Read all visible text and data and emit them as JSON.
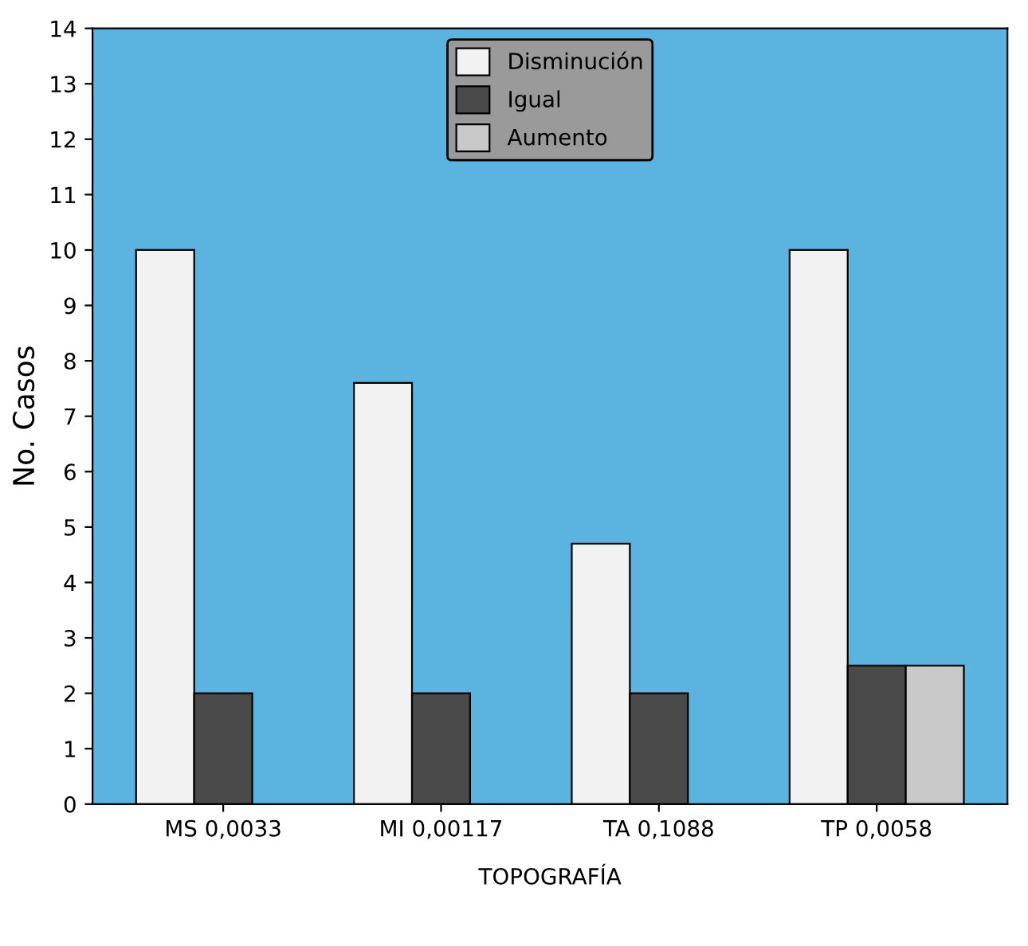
{
  "chart_data": {
    "type": "bar",
    "xlabel": "TOPOGRAFÍA",
    "ylabel": "No. Casos",
    "categories": [
      "MS 0,0033",
      "MI 0,00117",
      "TA 0,1088",
      "TP 0,0058"
    ],
    "series": [
      {
        "name": "Disminución",
        "color": "#f2f2f2",
        "values": [
          10,
          7.6,
          4.7,
          10
        ]
      },
      {
        "name": "Igual",
        "color": "#4a4a4a",
        "values": [
          2,
          2,
          2,
          2.5
        ]
      },
      {
        "name": "Aumento",
        "color": "#c8c8c8",
        "values": [
          null,
          null,
          null,
          2.5
        ]
      }
    ],
    "ylim": [
      0,
      14
    ],
    "yticks": [
      0,
      1,
      2,
      3,
      4,
      5,
      6,
      7,
      8,
      9,
      10,
      11,
      12,
      13,
      14
    ],
    "grid": false,
    "legend": "top"
  }
}
